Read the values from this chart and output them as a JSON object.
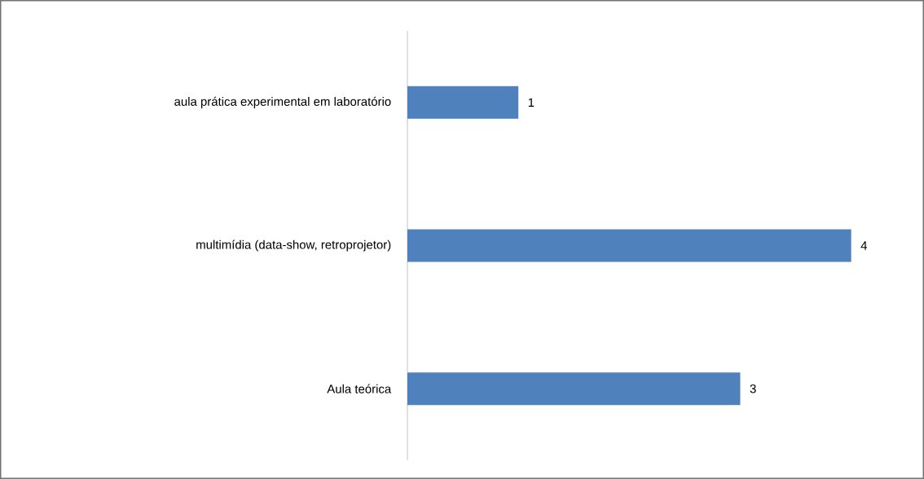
{
  "chart_data": {
    "type": "bar",
    "orientation": "horizontal",
    "tick_labels": "y",
    "data_labels": true,
    "categories": [
      "aula prática experimental em laboratório",
      "multimídia (data-show, retroprojetor)",
      "Aula teórica"
    ],
    "values": [
      1,
      4,
      3
    ],
    "color": "#4f81bd"
  }
}
